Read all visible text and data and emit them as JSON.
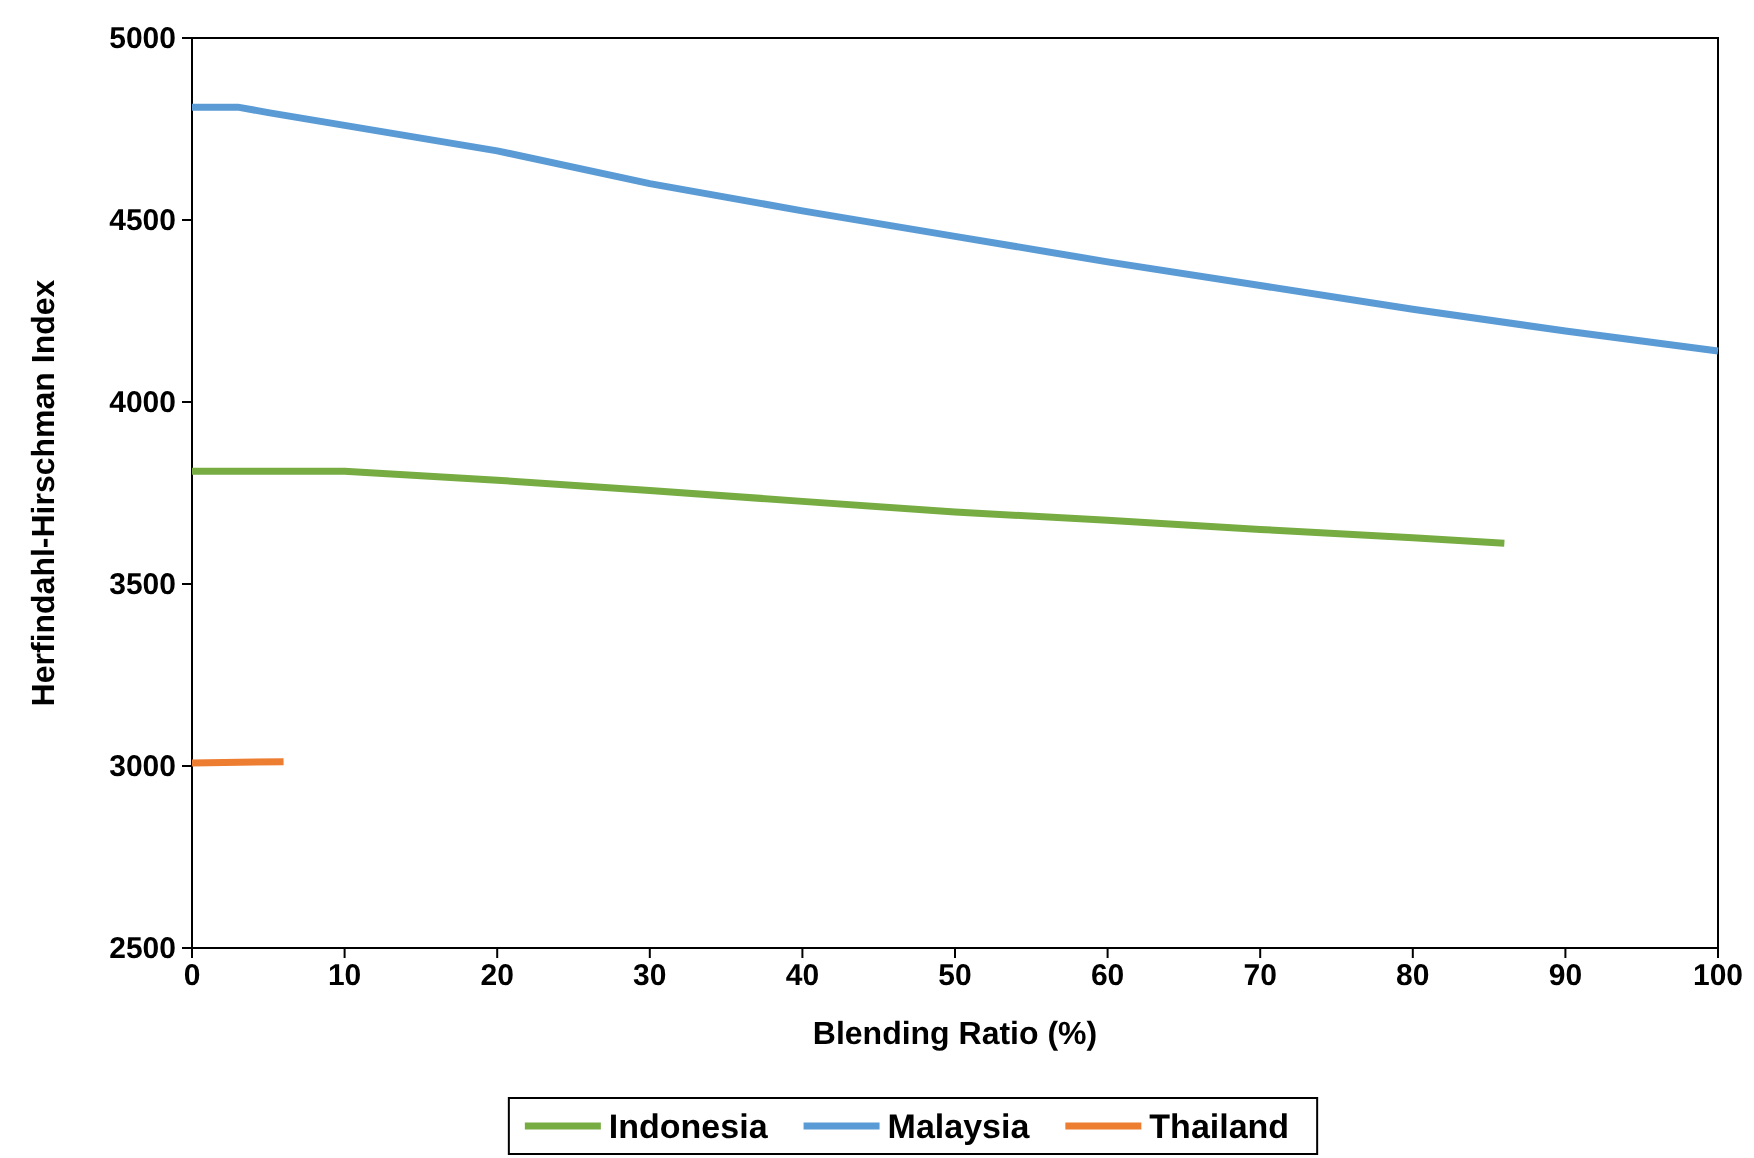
{
  "chart_data": {
    "type": "line",
    "xlabel": "Blending Ratio (%)",
    "ylabel": "Herfindahl-Hirschman Index",
    "xlim": [
      0,
      100
    ],
    "xticks": [
      0,
      10,
      20,
      30,
      40,
      50,
      60,
      70,
      80,
      90,
      100
    ],
    "ylim": [
      2500,
      5000
    ],
    "yticks": [
      2500,
      3000,
      3500,
      4000,
      4500,
      5000
    ],
    "grid": false,
    "legend": "bottom",
    "marker": "none",
    "line_style": "solid",
    "series": [
      {
        "name": "Indonesia",
        "color": "#77ac43",
        "x": [
          0,
          10,
          20,
          30,
          40,
          50,
          60,
          70,
          80,
          86
        ],
        "values": [
          3810,
          3810,
          3785,
          3757,
          3727,
          3698,
          3675,
          3650,
          3627,
          3612
        ]
      },
      {
        "name": "Malaysia",
        "color": "#5b9bd5",
        "x": [
          0,
          3,
          5,
          10,
          20,
          30,
          40,
          50,
          60,
          70,
          80,
          90,
          100
        ],
        "values": [
          4810,
          4810,
          4795,
          4760,
          4690,
          4600,
          4525,
          4455,
          4385,
          4320,
          4255,
          4195,
          4140
        ]
      },
      {
        "name": "Thailand",
        "color": "#ed7d31",
        "x": [
          0,
          6
        ],
        "values": [
          3008,
          3012
        ]
      }
    ]
  }
}
